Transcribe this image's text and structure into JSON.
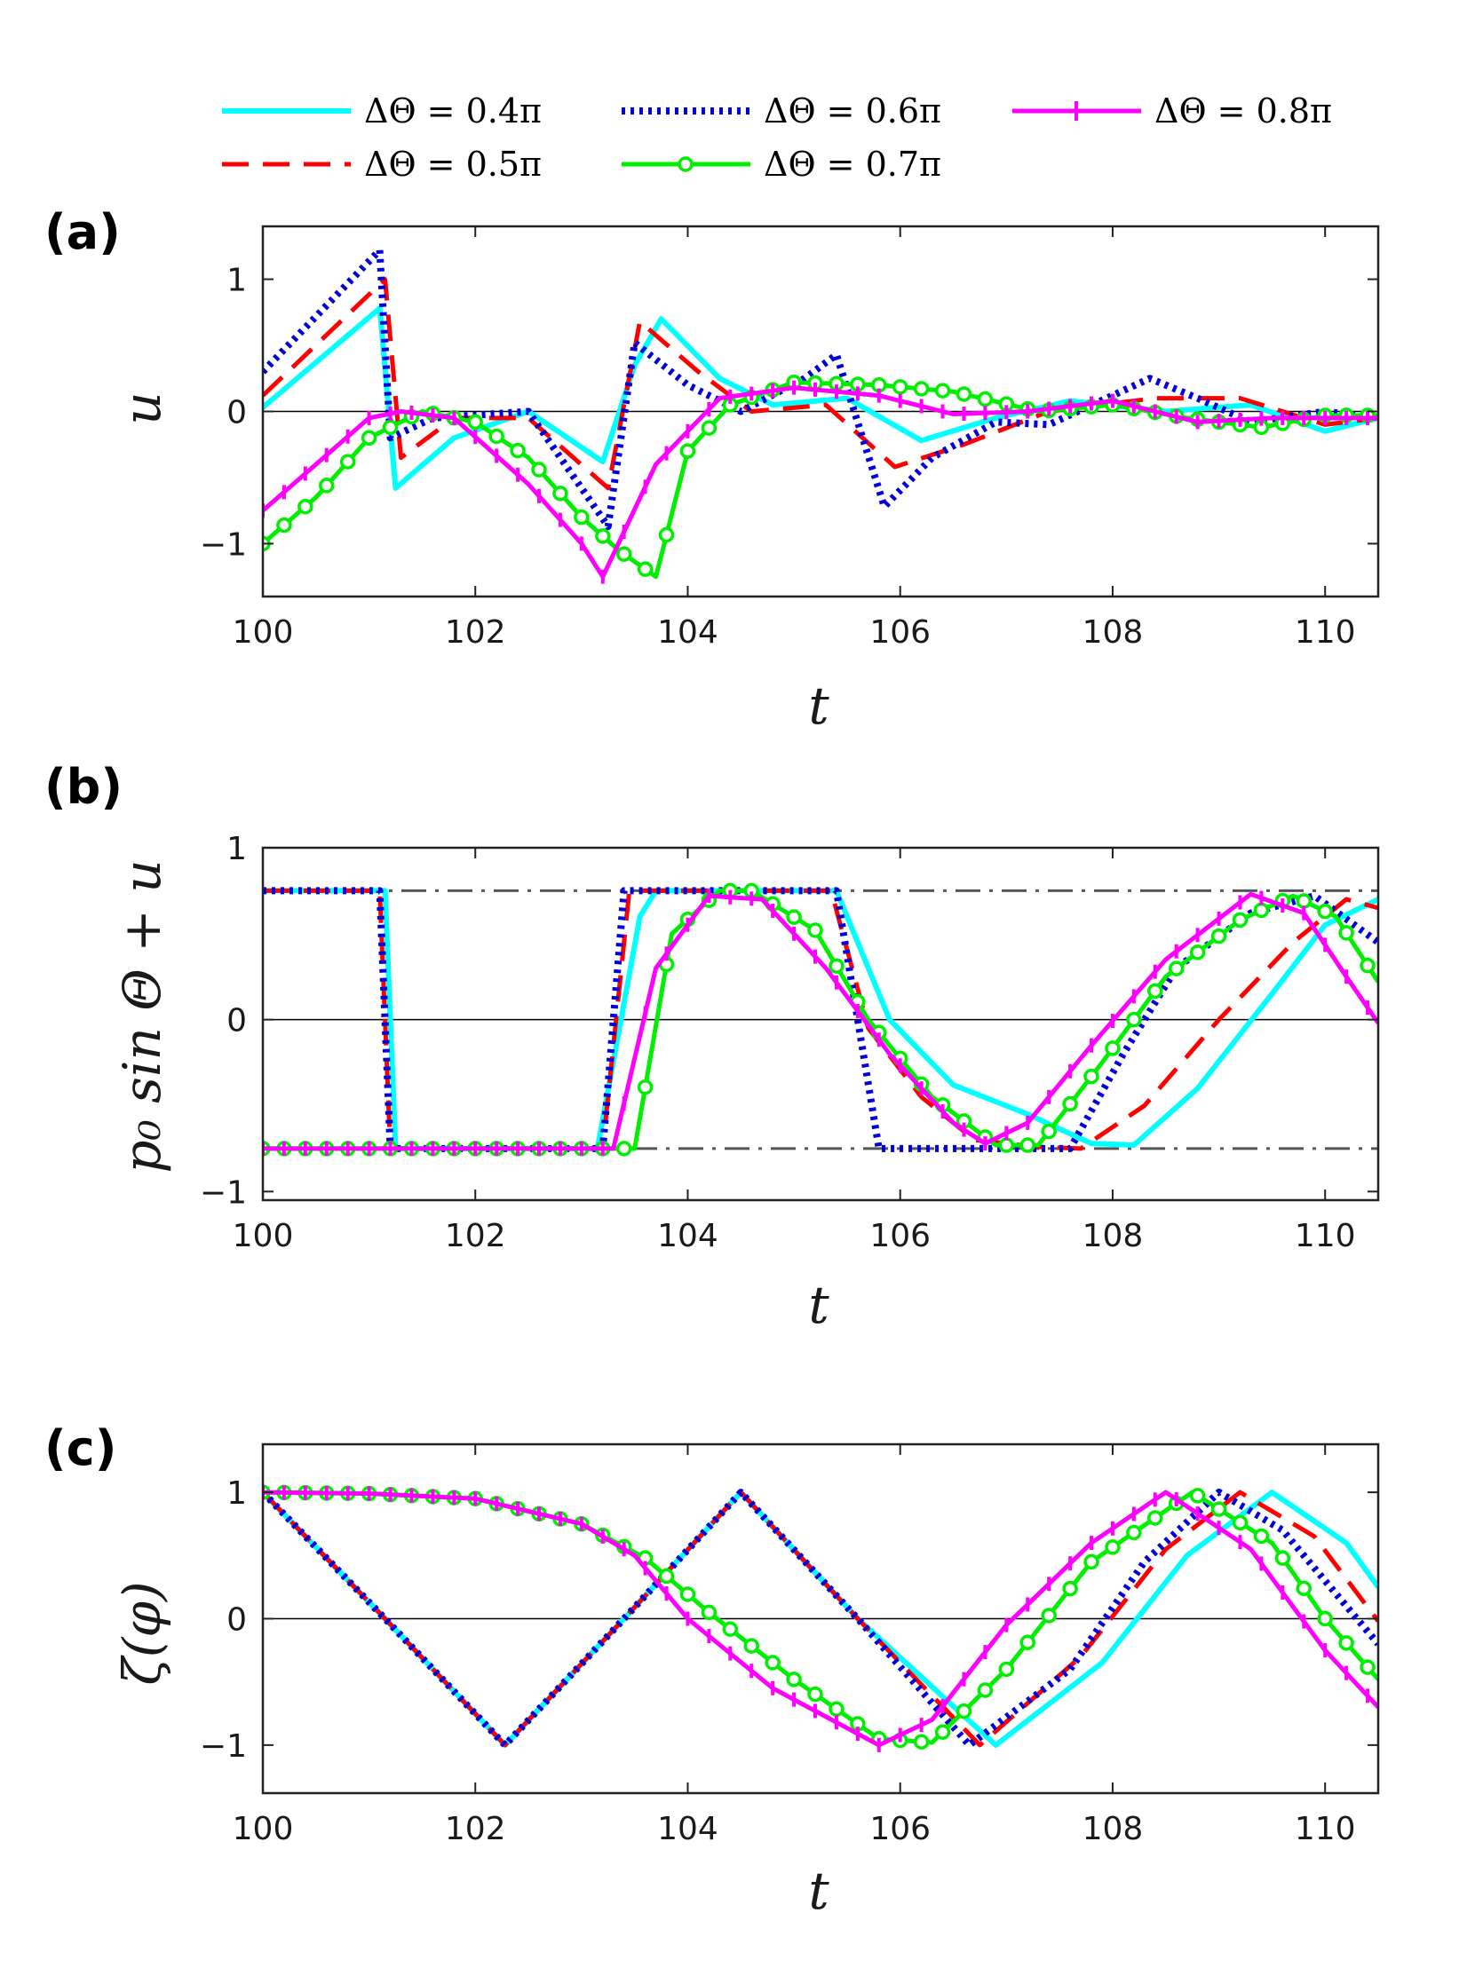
{
  "colors": {
    "cyan": "#00ffff",
    "red": "#ff0000",
    "blue": "#0000dd",
    "green": "#00ee00",
    "magenta": "#ff00ff",
    "guide": "#555555"
  },
  "legend": {
    "entries": [
      {
        "series": "dth04",
        "label": "ΔΘ = 0.4π"
      },
      {
        "series": "dth06",
        "label": "ΔΘ = 0.6π"
      },
      {
        "series": "dth08",
        "label": "ΔΘ = 0.8π"
      },
      {
        "series": "dth05",
        "label": "ΔΘ = 0.5π"
      },
      {
        "series": "dth07",
        "label": "ΔΘ = 0.7π"
      }
    ]
  },
  "chart_data": [
    {
      "panel": "(a)",
      "type": "line",
      "xlabel": "t",
      "ylabel": "u",
      "xlim": [
        100,
        110.5
      ],
      "ylim": [
        -1.4,
        1.4
      ],
      "xticks": [
        100,
        102,
        104,
        106,
        108,
        110
      ],
      "yticks": [
        -1,
        0,
        1
      ],
      "ytick_labels": [
        "−1",
        "0",
        "1"
      ],
      "series": [
        {
          "name": "ΔΘ = 0.4π",
          "key": "dth04",
          "x": [
            100,
            101.1,
            101.25,
            101.8,
            102.5,
            103.2,
            103.5,
            103.75,
            104.3,
            104.8,
            105.5,
            106.2,
            106.9,
            107.6,
            108.5,
            109.3,
            110,
            110.5
          ],
          "y": [
            0.03,
            0.78,
            -0.58,
            -0.2,
            0.0,
            -0.38,
            0.35,
            0.7,
            0.25,
            0.05,
            0.1,
            -0.22,
            -0.05,
            0.08,
            0.0,
            0.05,
            -0.15,
            -0.05
          ]
        },
        {
          "name": "ΔΘ = 0.5π",
          "key": "dth05",
          "x": [
            100,
            101.15,
            101.3,
            101.8,
            102.5,
            103.25,
            103.55,
            104.1,
            104.6,
            105.3,
            105.95,
            106.6,
            107.4,
            108.4,
            109.2,
            110,
            110.5
          ],
          "y": [
            0.12,
            1.0,
            -0.35,
            -0.05,
            -0.05,
            -0.58,
            0.68,
            0.3,
            0.0,
            0.05,
            -0.42,
            -0.25,
            0.0,
            0.1,
            0.1,
            -0.1,
            -0.05
          ]
        },
        {
          "name": "ΔΘ = 0.6π",
          "key": "dth06",
          "x": [
            100,
            101.1,
            101.2,
            101.6,
            102.5,
            103.25,
            103.5,
            104.0,
            104.5,
            105.1,
            105.4,
            105.85,
            106.3,
            106.9,
            107.4,
            108.35,
            108.8,
            109.3,
            110,
            110.5
          ],
          "y": [
            0.3,
            1.22,
            -0.2,
            -0.05,
            0.0,
            -0.87,
            0.52,
            0.2,
            0.0,
            0.25,
            0.43,
            -0.72,
            -0.35,
            -0.08,
            -0.1,
            0.25,
            0.1,
            -0.08,
            0.0,
            -0.05
          ]
        },
        {
          "name": "ΔΘ = 0.7π",
          "key": "dth07",
          "x": [
            100,
            100.5,
            101.0,
            101.5,
            102.0,
            102.5,
            103.0,
            103.35,
            103.7,
            104.0,
            104.4,
            105.0,
            105.8,
            106.5,
            107.3,
            108.0,
            108.7,
            109.4,
            110,
            110.5
          ],
          "y": [
            -1.0,
            -0.65,
            -0.2,
            0.0,
            -0.08,
            -0.35,
            -0.8,
            -1.05,
            -1.25,
            -0.3,
            0.05,
            0.22,
            0.2,
            0.15,
            0.0,
            0.05,
            -0.05,
            -0.12,
            -0.03,
            -0.03
          ]
        },
        {
          "name": "ΔΘ = 0.8π",
          "key": "dth08",
          "x": [
            100,
            100.5,
            101.0,
            101.3,
            101.8,
            102.5,
            103.0,
            103.2,
            103.7,
            104.3,
            105.0,
            105.8,
            106.5,
            107.2,
            108.0,
            108.8,
            109.5,
            110.5
          ],
          "y": [
            -0.75,
            -0.4,
            -0.05,
            0.0,
            -0.05,
            -0.55,
            -1.0,
            -1.25,
            -0.4,
            0.1,
            0.18,
            0.12,
            -0.02,
            0.0,
            0.08,
            -0.08,
            -0.05,
            -0.05
          ]
        }
      ]
    },
    {
      "panel": "(b)",
      "type": "line",
      "xlabel": "t",
      "ylabel": "p₀ sin Θ + u",
      "xlim": [
        100,
        110.5
      ],
      "ylim": [
        -1.05,
        1.0
      ],
      "xticks": [
        100,
        102,
        104,
        106,
        108,
        110
      ],
      "yticks": [
        -1,
        0,
        1
      ],
      "ytick_labels": [
        "−1",
        "0",
        "1"
      ],
      "guides": [
        0.75,
        -0.75
      ],
      "series": [
        {
          "name": "ΔΘ = 0.4π",
          "key": "dth04",
          "x": [
            100,
            101.15,
            101.25,
            103.15,
            103.55,
            103.7,
            105.4,
            105.9,
            106.5,
            107.2,
            107.8,
            108.2,
            108.8,
            109.5,
            110,
            110.5
          ],
          "y": [
            0.75,
            0.75,
            -0.75,
            -0.75,
            0.6,
            0.75,
            0.75,
            0.0,
            -0.38,
            -0.55,
            -0.72,
            -0.73,
            -0.4,
            0.15,
            0.55,
            0.7
          ]
        },
        {
          "name": "ΔΘ = 0.5π",
          "key": "dth05",
          "x": [
            100,
            101.1,
            101.2,
            103.2,
            103.45,
            105.35,
            105.7,
            106.2,
            106.7,
            107.3,
            107.7,
            108.3,
            109.0,
            109.7,
            110.2,
            110.5
          ],
          "y": [
            0.75,
            0.75,
            -0.75,
            -0.75,
            0.75,
            0.75,
            -0.05,
            -0.45,
            -0.7,
            -0.74,
            -0.75,
            -0.5,
            0.0,
            0.45,
            0.7,
            0.65
          ]
        },
        {
          "name": "ΔΘ = 0.6π",
          "key": "dth06",
          "x": [
            100,
            101.1,
            101.2,
            103.2,
            103.4,
            105.4,
            105.8,
            107.6,
            108.1,
            108.6,
            109.3,
            109.9,
            110.5
          ],
          "y": [
            0.75,
            0.75,
            -0.75,
            -0.75,
            0.75,
            0.75,
            -0.75,
            -0.75,
            -0.2,
            0.3,
            0.62,
            0.72,
            0.45
          ]
        },
        {
          "name": "ΔΘ = 0.7π",
          "key": "dth07",
          "x": [
            100,
            103.5,
            103.85,
            104.3,
            104.6,
            105.2,
            105.7,
            106.3,
            106.9,
            107.3,
            107.9,
            108.5,
            109.2,
            109.7,
            110.1,
            110.5
          ],
          "y": [
            -0.75,
            -0.75,
            0.5,
            0.75,
            0.75,
            0.52,
            0.0,
            -0.45,
            -0.73,
            -0.73,
            -0.25,
            0.25,
            0.58,
            0.72,
            0.6,
            0.22
          ]
        },
        {
          "name": "ΔΘ = 0.8π",
          "key": "dth08",
          "x": [
            100,
            103.3,
            103.7,
            104.2,
            104.7,
            105.3,
            105.9,
            106.5,
            106.8,
            107.2,
            107.8,
            108.5,
            109.3,
            109.8,
            110.2,
            110.5
          ],
          "y": [
            -0.75,
            -0.75,
            0.3,
            0.72,
            0.7,
            0.3,
            -0.2,
            -0.6,
            -0.72,
            -0.6,
            -0.15,
            0.35,
            0.73,
            0.62,
            0.25,
            -0.02
          ]
        }
      ]
    },
    {
      "panel": "(c)",
      "type": "line",
      "xlabel": "t",
      "ylabel": "ζ(φ)",
      "xlim": [
        100,
        110.5
      ],
      "ylim": [
        -1.38,
        1.38
      ],
      "xticks": [
        100,
        102,
        104,
        106,
        108,
        110
      ],
      "yticks": [
        -1,
        0,
        1
      ],
      "ytick_labels": [
        "−1",
        "0",
        "1"
      ],
      "series": [
        {
          "name": "ΔΘ = 0.4π",
          "key": "dth04",
          "x": [
            100,
            101.15,
            102.28,
            103.4,
            104.5,
            105.6,
            106.9,
            107.9,
            108.7,
            109.5,
            110.2,
            110.5
          ],
          "y": [
            1.0,
            0.0,
            -1.0,
            0.0,
            1.0,
            0.0,
            -1.0,
            -0.35,
            0.5,
            1.0,
            0.6,
            0.25
          ]
        },
        {
          "name": "ΔΘ = 0.5π",
          "key": "dth05",
          "x": [
            100,
            101.15,
            102.28,
            103.4,
            104.5,
            105.6,
            106.75,
            107.7,
            108.5,
            109.2,
            109.9,
            110.5
          ],
          "y": [
            1.0,
            0.0,
            -1.0,
            0.0,
            1.0,
            0.0,
            -1.0,
            -0.3,
            0.55,
            1.0,
            0.65,
            -0.02
          ]
        },
        {
          "name": "ΔΘ = 0.6π",
          "key": "dth06",
          "x": [
            100,
            101.15,
            102.28,
            103.4,
            104.5,
            105.6,
            106.65,
            107.6,
            108.3,
            109.0,
            109.6,
            110.5
          ],
          "y": [
            1.0,
            0.0,
            -1.0,
            0.0,
            1.0,
            0.0,
            -1.0,
            -0.4,
            0.45,
            1.0,
            0.7,
            -0.2
          ]
        },
        {
          "name": "ΔΘ = 0.7π",
          "key": "dth07",
          "x": [
            100,
            101.0,
            102.0,
            103.0,
            103.6,
            104.2,
            105.0,
            105.8,
            106.3,
            107.0,
            107.8,
            108.75,
            109.5,
            110.0,
            110.5
          ],
          "y": [
            1.0,
            0.99,
            0.95,
            0.75,
            0.48,
            0.05,
            -0.48,
            -0.95,
            -0.98,
            -0.4,
            0.45,
            1.0,
            0.6,
            0.0,
            -0.48
          ]
        },
        {
          "name": "ΔΘ = 0.8π",
          "key": "dth08",
          "x": [
            100,
            101.0,
            102.0,
            103.0,
            103.5,
            104.0,
            104.8,
            105.8,
            106.3,
            107.0,
            107.8,
            108.5,
            109.3,
            110.0,
            110.5
          ],
          "y": [
            1.0,
            0.99,
            0.95,
            0.75,
            0.5,
            0.0,
            -0.55,
            -1.0,
            -0.8,
            -0.05,
            0.6,
            1.0,
            0.55,
            -0.25,
            -0.7
          ]
        }
      ]
    }
  ]
}
